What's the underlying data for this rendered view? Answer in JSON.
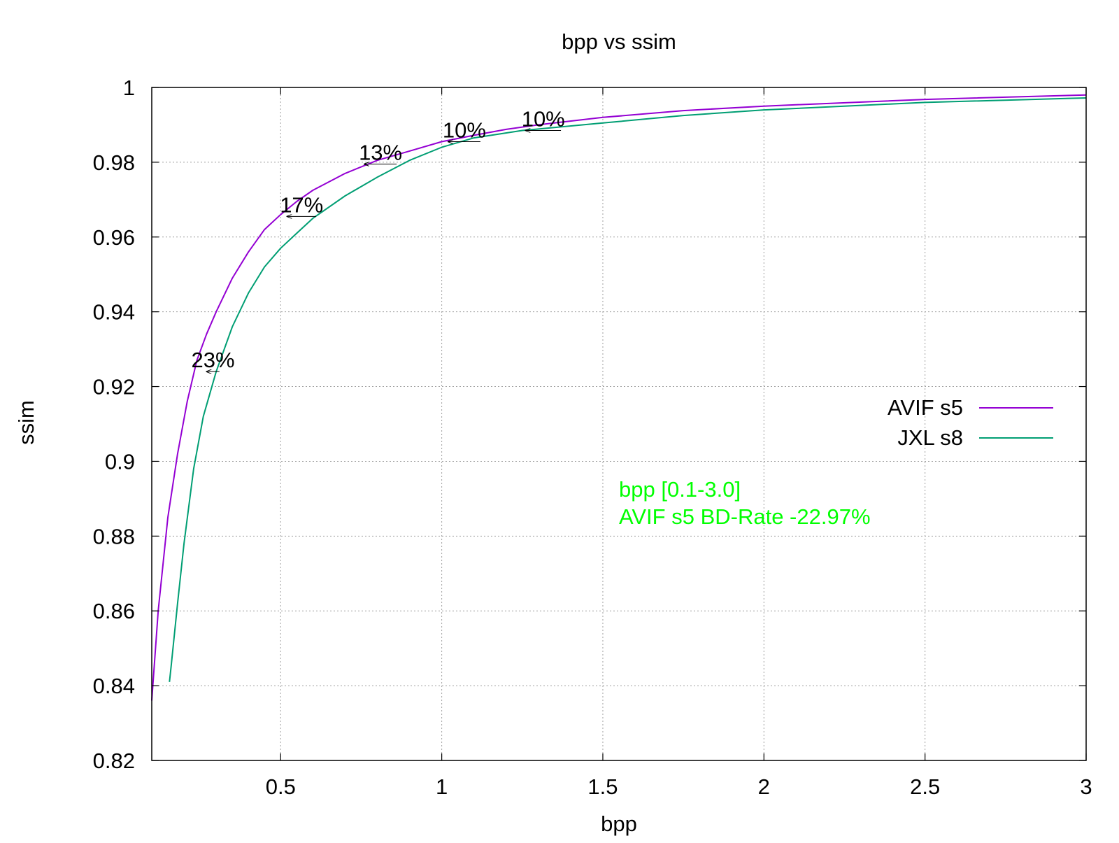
{
  "chart_data": {
    "type": "line",
    "title": "bpp vs ssim",
    "xlabel": "bpp",
    "ylabel": "ssim",
    "xlim": [
      0.1,
      3.0
    ],
    "ylim": [
      0.82,
      1.0
    ],
    "x_ticks": [
      0.5,
      1,
      1.5,
      2,
      2.5,
      3
    ],
    "y_ticks": [
      0.82,
      0.84,
      0.86,
      0.88,
      0.9,
      0.92,
      0.94,
      0.96,
      0.98,
      1
    ],
    "x_tick_labels": [
      "0.5",
      "1",
      "1.5",
      "2",
      "2.5",
      "3"
    ],
    "y_tick_labels": [
      "0.82",
      "0.84",
      "0.86",
      "0.88",
      "0.9",
      "0.92",
      "0.94",
      "0.96",
      "0.98",
      "1"
    ],
    "grid": true,
    "legend_position": "right",
    "series": [
      {
        "name": "AVIF s5",
        "color": "#9400d3",
        "x": [
          0.1,
          0.12,
          0.15,
          0.18,
          0.21,
          0.24,
          0.27,
          0.3,
          0.35,
          0.4,
          0.45,
          0.5,
          0.55,
          0.6,
          0.7,
          0.8,
          0.9,
          1.0,
          1.1,
          1.2,
          1.3,
          1.5,
          1.75,
          2.0,
          2.5,
          3.0
        ],
        "values": [
          0.836,
          0.86,
          0.885,
          0.902,
          0.916,
          0.927,
          0.934,
          0.94,
          0.949,
          0.956,
          0.962,
          0.966,
          0.9695,
          0.9725,
          0.977,
          0.9805,
          0.983,
          0.9855,
          0.9872,
          0.9888,
          0.99,
          0.992,
          0.9938,
          0.995,
          0.9968,
          0.998
        ]
      },
      {
        "name": "JXL s8",
        "color": "#009e73",
        "x": [
          0.155,
          0.16,
          0.18,
          0.2,
          0.23,
          0.26,
          0.3,
          0.35,
          0.4,
          0.45,
          0.5,
          0.55,
          0.6,
          0.7,
          0.8,
          0.9,
          1.0,
          1.1,
          1.25,
          1.5,
          1.75,
          2.0,
          2.5,
          3.0
        ],
        "values": [
          0.841,
          0.845,
          0.862,
          0.878,
          0.898,
          0.912,
          0.924,
          0.936,
          0.945,
          0.952,
          0.957,
          0.961,
          0.965,
          0.971,
          0.976,
          0.9805,
          0.984,
          0.9865,
          0.9885,
          0.9905,
          0.9925,
          0.994,
          0.996,
          0.9972
        ]
      }
    ],
    "annotations": [
      {
        "text": "23%",
        "x_from": 0.31,
        "x_to": 0.27,
        "y": 0.924
      },
      {
        "text": "17%",
        "x_from": 0.61,
        "x_to": 0.52,
        "y": 0.9655
      },
      {
        "text": "13%",
        "x_from": 0.86,
        "x_to": 0.76,
        "y": 0.9795
      },
      {
        "text": "10%",
        "x_from": 1.12,
        "x_to": 1.02,
        "y": 0.9855
      },
      {
        "text": "10%",
        "x_from": 1.37,
        "x_to": 1.26,
        "y": 0.9885
      }
    ],
    "bd_rate_label": {
      "line1": "bpp [0.1-3.0]",
      "line2": "AVIF s5 BD-Rate -22.97%",
      "color": "#00ff00"
    }
  }
}
